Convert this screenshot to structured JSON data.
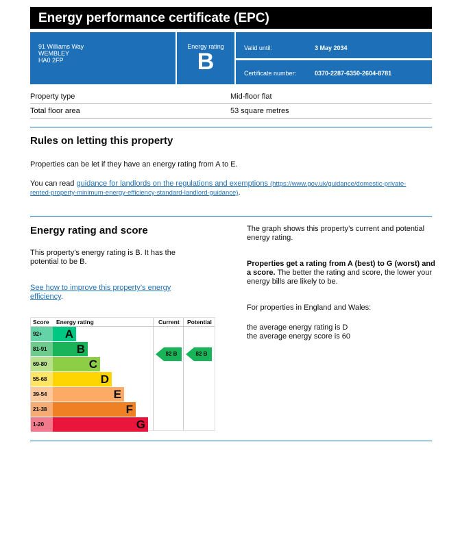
{
  "title": "Energy performance certificate (EPC)",
  "address": [
    "91 Williams Way",
    "WEMBLEY",
    "HA0 2FP"
  ],
  "energy_rating_label": "Energy rating",
  "energy_rating": "B",
  "valid_until_label": "Valid until:",
  "valid_until": "3 May 2034",
  "cert_label": "Certificate number:",
  "cert_number": "0370-2287-6350-2604-8781",
  "property": [
    {
      "label": "Property type",
      "value": "Mid-floor flat"
    },
    {
      "label": "Total floor area",
      "value": "53 square metres"
    }
  ],
  "rules": {
    "heading": "Rules on letting this property",
    "p1": "Properties can be let if they have an energy rating from A to E.",
    "p2_prefix": "You can read ",
    "link": "guidance for landlords on the regulations and exemptions",
    "url": "(https://www.gov.uk/guidance/domestic-private-rented-property-minimum-energy-efficiency-standard-landlord-guidance)",
    "p2_suffix": "."
  },
  "score": {
    "heading": "Energy rating and score",
    "p1": "This property’s energy rating is B. It has the potential to be B.",
    "link": "See how to improve this property’s energy efficiency",
    "link_suffix": ".",
    "right_p1": "The graph shows this property’s current and potential energy rating.",
    "right_bold": "Properties get a rating from A (best) to G (worst) and a score.",
    "right_p2": " The better the rating and score, the lower your energy bills are likely to be.",
    "right_p3": "For properties in England and Wales:",
    "right_p4": "the average energy rating is D",
    "right_p5": "the average energy score is 60"
  },
  "chart_data": {
    "type": "table",
    "headers": [
      "Score",
      "Energy rating",
      "Current",
      "Potential"
    ],
    "bands": [
      {
        "score": "92+",
        "letter": "A",
        "color": "#00c781",
        "light": "#64d4a8"
      },
      {
        "score": "81-91",
        "letter": "B",
        "color": "#19b459",
        "light": "#6dcb8d"
      },
      {
        "score": "69-80",
        "letter": "C",
        "color": "#8dce46",
        "light": "#b8e08d"
      },
      {
        "score": "55-68",
        "letter": "D",
        "color": "#ffd500",
        "light": "#ffe566"
      },
      {
        "score": "39-54",
        "letter": "E",
        "color": "#fcaa65",
        "light": "#fdc89c"
      },
      {
        "score": "21-38",
        "letter": "F",
        "color": "#ef8023",
        "light": "#f4ac74"
      },
      {
        "score": "1-20",
        "letter": "G",
        "color": "#e9153b",
        "light": "#f07a8c"
      }
    ],
    "current": {
      "score": 82,
      "letter": "B",
      "label": "82  B"
    },
    "potential": {
      "score": 82,
      "letter": "B",
      "label": "82  B"
    }
  }
}
